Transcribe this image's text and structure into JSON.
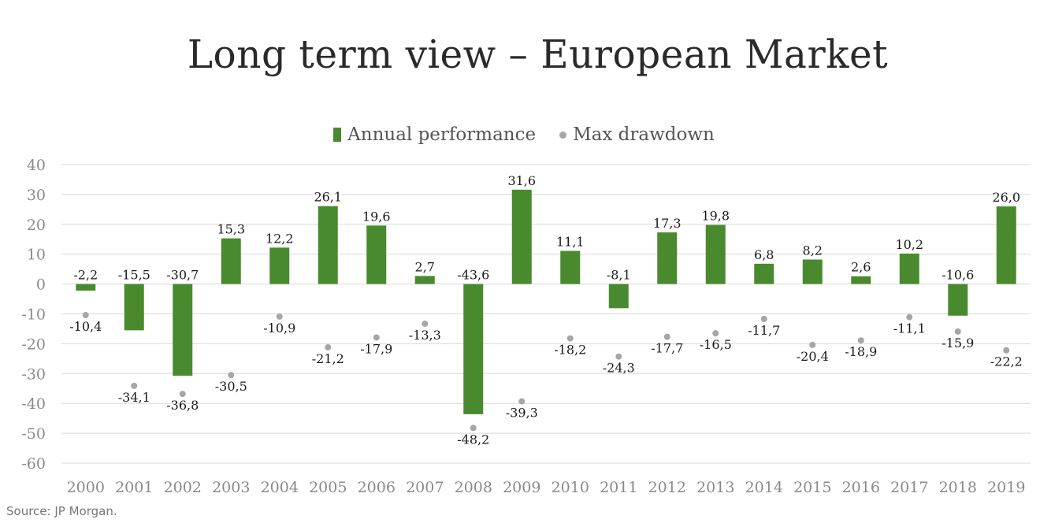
{
  "chart_data": {
    "type": "bar",
    "title": "Long term view – European Market",
    "categories": [
      "2000",
      "2001",
      "2002",
      "2003",
      "2004",
      "2005",
      "2006",
      "2007",
      "2008",
      "2009",
      "2010",
      "2011",
      "2012",
      "2013",
      "2014",
      "2015",
      "2016",
      "2017",
      "2018",
      "2019"
    ],
    "series": [
      {
        "name": "Annual performance",
        "style": "bar",
        "color": "#4a8a2e",
        "values": [
          -2.2,
          -15.5,
          -30.7,
          15.3,
          12.2,
          26.1,
          19.6,
          2.7,
          -43.6,
          31.6,
          11.1,
          -8.1,
          17.3,
          19.8,
          6.8,
          8.2,
          2.6,
          10.2,
          -10.6,
          26.0
        ],
        "labels": [
          "-2,2",
          "-15,5",
          "-30,7",
          "15,3",
          "12,2",
          "26,1",
          "19,6",
          "2,7",
          "-43,6",
          "31,6",
          "11,1",
          "-8,1",
          "17,3",
          "19,8",
          "6,8",
          "8,2",
          "2,6",
          "10,2",
          "-10,6",
          "26,0"
        ]
      },
      {
        "name": "Max drawdown",
        "style": "dot",
        "color": "#a6a6a6",
        "values": [
          -10.4,
          -34.1,
          -36.8,
          -30.5,
          -10.9,
          -21.2,
          -17.9,
          -13.3,
          -48.2,
          -39.3,
          -18.2,
          -24.3,
          -17.7,
          -16.5,
          -11.7,
          -20.4,
          -18.9,
          -11.1,
          -15.9,
          -22.2
        ],
        "labels": [
          "-10,4",
          "-34,1",
          "-36,8",
          "-30,5",
          "-10,9",
          "-21,2",
          "-17,9",
          "-13,3",
          "-48,2",
          "-39,3",
          "-18,2",
          "-24,3",
          "-17,7",
          "-16,5",
          "-11,7",
          "-20,4",
          "-18,9",
          "-11,1",
          "-15,9",
          "-22,2"
        ]
      }
    ],
    "ylim": [
      -60,
      40
    ],
    "yticks": [
      40,
      30,
      20,
      10,
      0,
      -10,
      -20,
      -30,
      -40,
      -50,
      -60
    ],
    "grid": true,
    "legend": "top-center"
  },
  "legend": {
    "bar_label": "Annual performance",
    "dot_label": "Max drawdown"
  },
  "source": "Source: JP Morgan."
}
